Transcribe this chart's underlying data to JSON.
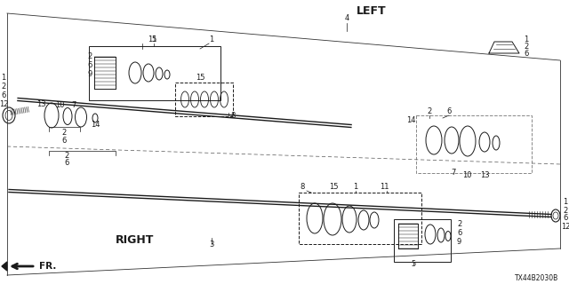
{
  "bg_color": "#ffffff",
  "fig_width": 6.4,
  "fig_height": 3.2,
  "dpi": 100,
  "diagram_code": "TX44B2030B",
  "left_label": "LEFT",
  "right_label": "RIGHT",
  "fr_label": "FR."
}
